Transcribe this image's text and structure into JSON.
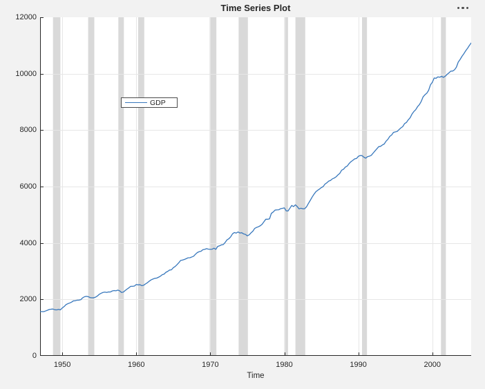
{
  "window": {
    "background": "#f2f2f2",
    "options_menu": {
      "icon": "ellipsis-icon",
      "dot_color": "#4d4d4d"
    }
  },
  "styles": {
    "plot_background": "#ffffff",
    "grid_color": "#e6e6e6",
    "band_color": "#d9d9d9",
    "axis_color": "#262626",
    "text_color": "#262626",
    "line_color": "#3777bc"
  },
  "legend": {
    "entries": [
      {
        "label": "GDP",
        "color": "#3777bc"
      }
    ]
  },
  "chart_data": {
    "type": "line",
    "title": "Time Series Plot",
    "xlabel": "Time",
    "ylabel": "",
    "xlim": [
      1947,
      2005.25
    ],
    "ylim": [
      0,
      12000
    ],
    "xticks": [
      1950,
      1960,
      1970,
      1980,
      1990,
      2000
    ],
    "yticks": [
      0,
      2000,
      4000,
      6000,
      8000,
      10000,
      12000
    ],
    "grid": true,
    "legend_position": "inside-upper-left",
    "recession_bands": {
      "color": "#d9d9d9",
      "intervals": [
        [
          1948.75,
          1949.75
        ],
        [
          1953.5,
          1954.33
        ],
        [
          1957.58,
          1958.33
        ],
        [
          1960.25,
          1961.08
        ],
        [
          1969.92,
          1970.83
        ],
        [
          1973.83,
          1975.08
        ],
        [
          1980.0,
          1980.5
        ],
        [
          1981.5,
          1982.83
        ],
        [
          1990.5,
          1991.17
        ],
        [
          2001.17,
          2001.83
        ]
      ]
    },
    "series": [
      {
        "name": "GDP",
        "color": "#3777bc",
        "x_start": 1947,
        "x_step": 0.25,
        "values": [
          1570,
          1568,
          1568,
          1590,
          1616,
          1644,
          1654,
          1658,
          1633,
          1628,
          1647,
          1629,
          1697,
          1747,
          1815,
          1848,
          1872,
          1902,
          1949,
          1952,
          1973,
          1976,
          1990,
          2056,
          2094,
          2110,
          2098,
          2066,
          2057,
          2058,
          2081,
          2122,
          2182,
          2218,
          2247,
          2259,
          2248,
          2266,
          2263,
          2299,
          2313,
          2306,
          2329,
          2305,
          2246,
          2260,
          2313,
          2366,
          2411,
          2465,
          2465,
          2473,
          2528,
          2515,
          2521,
          2487,
          2503,
          2550,
          2592,
          2646,
          2692,
          2722,
          2747,
          2755,
          2786,
          2821,
          2875,
          2896,
          2960,
          2994,
          3041,
          3049,
          3124,
          3166,
          3231,
          3302,
          3383,
          3394,
          3417,
          3444,
          3475,
          3477,
          3504,
          3531,
          3602,
          3662,
          3691,
          3706,
          3763,
          3774,
          3798,
          3780,
          3775,
          3780,
          3815,
          3774,
          3879,
          3900,
          3932,
          3943,
          4015,
          4109,
          4148,
          4217,
          4324,
          4372,
          4350,
          4390,
          4353,
          4364,
          4322,
          4305,
          4254,
          4287,
          4359,
          4417,
          4517,
          4551,
          4575,
          4610,
          4663,
          4755,
          4841,
          4841,
          4855,
          5050,
          5098,
          5166,
          5173,
          5177,
          5215,
          5229,
          5245,
          5140,
          5135,
          5230,
          5331,
          5290,
          5352,
          5289,
          5209,
          5233,
          5212,
          5214,
          5281,
          5398,
          5507,
          5622,
          5724,
          5812,
          5866,
          5910,
          5963,
          6000,
          6089,
          6133,
          6192,
          6217,
          6274,
          6302,
          6346,
          6414,
          6469,
          6581,
          6614,
          6690,
          6726,
          6814,
          6880,
          6927,
          6981,
          6994,
          7071,
          7098,
          7097,
          7041,
          7006,
          7058,
          7076,
          7106,
          7185,
          7262,
          7337,
          7413,
          7425,
          7473,
          7509,
          7609,
          7676,
          7778,
          7827,
          7918,
          7938,
          7952,
          8019,
          8079,
          8124,
          8230,
          8273,
          8365,
          8438,
          8567,
          8658,
          8723,
          8829,
          8904,
          9018,
          9178,
          9253,
          9308,
          9411,
          9605,
          9696,
          9848,
          9837,
          9887,
          9875,
          9906,
          9871,
          9910,
          9977,
          10032,
          10091,
          10095,
          10139,
          10230,
          10411,
          10503,
          10613,
          10704,
          10809,
          10897,
          10999,
          11089
        ]
      }
    ]
  }
}
